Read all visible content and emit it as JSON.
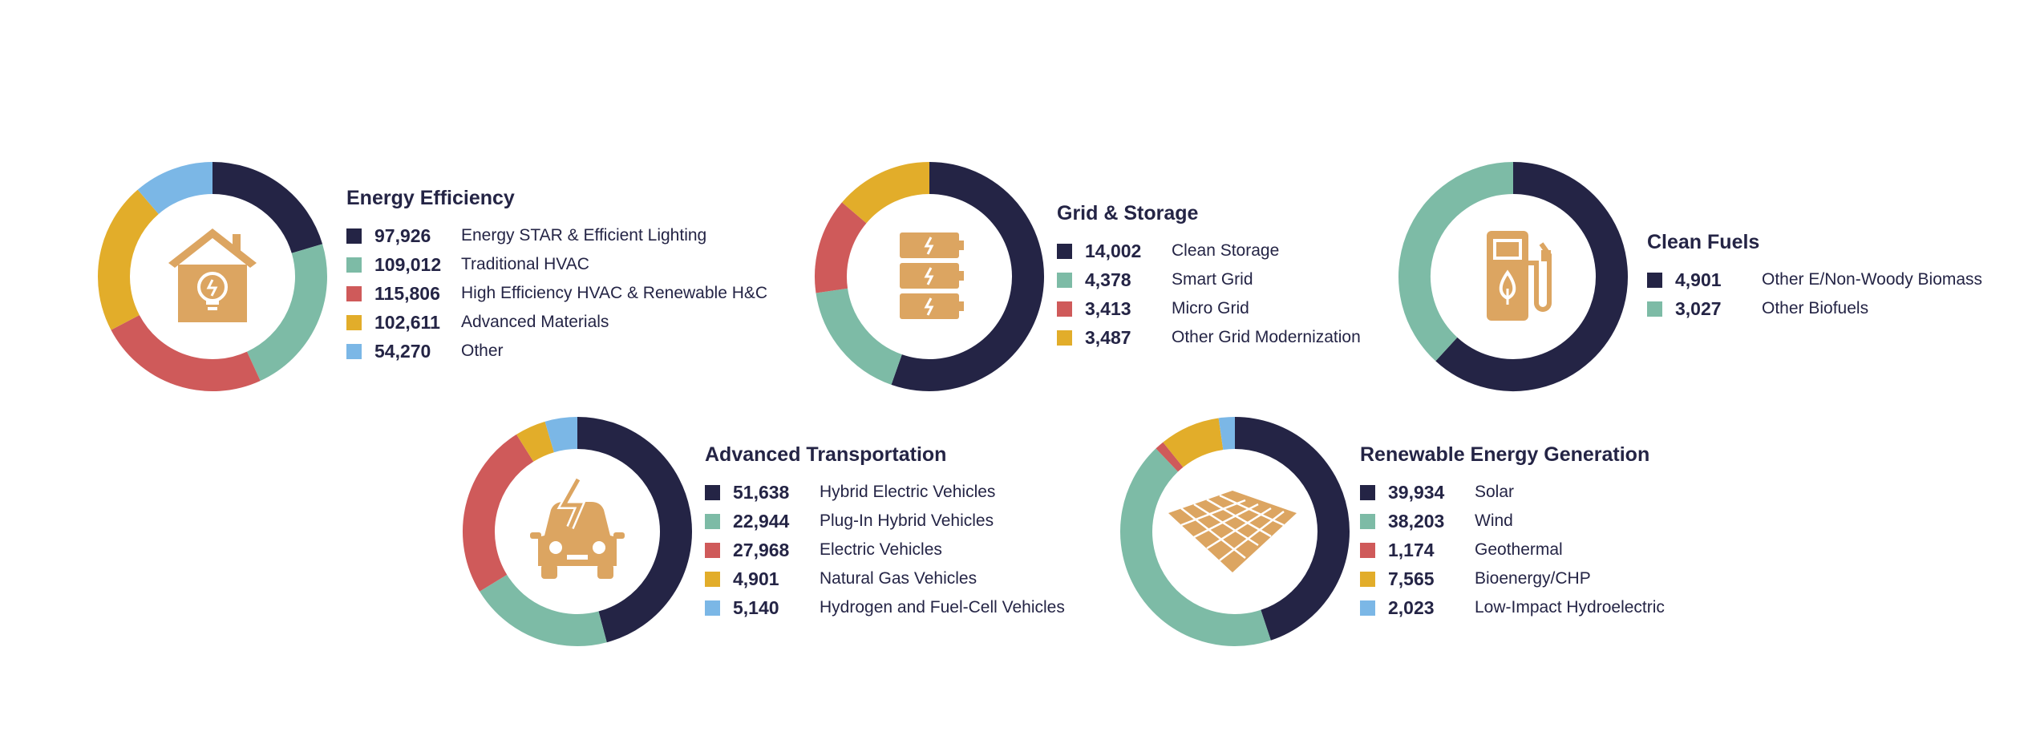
{
  "colors": {
    "navy": "#242445",
    "teal": "#7dbba6",
    "red": "#cf5a5a",
    "gold": "#e2ad2a",
    "blue": "#7bb7e6",
    "icon": "#dca561"
  },
  "chart_data": [
    {
      "type": "pie",
      "title": "Energy Efficiency",
      "icon": "house-lightbulb-icon",
      "series": [
        {
          "name": "Energy STAR & Efficient Lighting",
          "value": 97926,
          "label": "97,926",
          "color": "#242445"
        },
        {
          "name": "Traditional HVAC",
          "value": 109012,
          "label": "109,012",
          "color": "#7dbba6"
        },
        {
          "name": "High Efficiency HVAC & Renewable H&C",
          "value": 115806,
          "label": "115,806",
          "color": "#cf5a5a"
        },
        {
          "name": "Advanced Materials",
          "value": 102611,
          "label": "102,611",
          "color": "#e2ad2a"
        },
        {
          "name": "Other",
          "value": 54270,
          "label": "54,270",
          "color": "#7bb7e6"
        }
      ]
    },
    {
      "type": "pie",
      "title": "Grid & Storage",
      "icon": "battery-stack-icon",
      "series": [
        {
          "name": "Clean Storage",
          "value": 14002,
          "label": "14,002",
          "color": "#242445"
        },
        {
          "name": "Smart Grid",
          "value": 4378,
          "label": "4,378",
          "color": "#7dbba6"
        },
        {
          "name": "Micro Grid",
          "value": 3413,
          "label": "3,413",
          "color": "#cf5a5a"
        },
        {
          "name": "Other Grid Modernization",
          "value": 3487,
          "label": "3,487",
          "color": "#e2ad2a"
        }
      ]
    },
    {
      "type": "pie",
      "title": "Clean Fuels",
      "icon": "fuel-pump-icon",
      "series": [
        {
          "name": "Other E/Non-Woody Biomass",
          "value": 4901,
          "label": "4,901",
          "color": "#242445"
        },
        {
          "name": "Other Biofuels",
          "value": 3027,
          "label": "3,027",
          "color": "#7dbba6"
        }
      ]
    },
    {
      "type": "pie",
      "title": "Advanced Transportation",
      "icon": "electric-car-icon",
      "series": [
        {
          "name": "Hybrid Electric Vehicles",
          "value": 51638,
          "label": "51,638",
          "color": "#242445"
        },
        {
          "name": "Plug-In Hybrid Vehicles",
          "value": 22944,
          "label": "22,944",
          "color": "#7dbba6"
        },
        {
          "name": "Electric Vehicles",
          "value": 27968,
          "label": "27,968",
          "color": "#cf5a5a"
        },
        {
          "name": "Natural Gas Vehicles",
          "value": 4901,
          "label": "4,901",
          "color": "#e2ad2a"
        },
        {
          "name": "Hydrogen and Fuel-Cell Vehicles",
          "value": 5140,
          "label": "5,140",
          "color": "#7bb7e6"
        }
      ]
    },
    {
      "type": "pie",
      "title": "Renewable Energy Generation",
      "icon": "solar-panel-icon",
      "series": [
        {
          "name": "Solar",
          "value": 39934,
          "label": "39,934",
          "color": "#242445"
        },
        {
          "name": "Wind",
          "value": 38203,
          "label": "38,203",
          "color": "#7dbba6"
        },
        {
          "name": "Geothermal",
          "value": 1174,
          "label": "1,174",
          "color": "#cf5a5a"
        },
        {
          "name": "Bioenergy/CHP",
          "value": 7565,
          "label": "7,565",
          "color": "#e2ad2a"
        },
        {
          "name": "Low-Impact Hydroelectric",
          "value": 2023,
          "label": "2,023",
          "color": "#7bb7e6"
        }
      ]
    }
  ]
}
